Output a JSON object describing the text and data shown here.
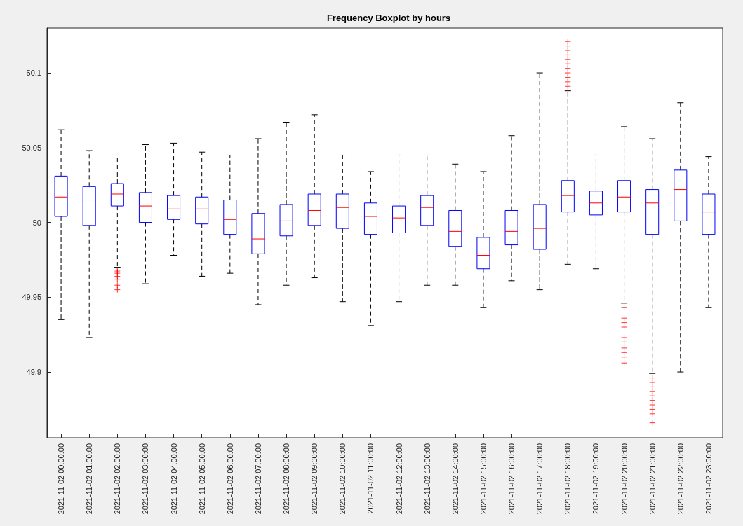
{
  "chart_data": {
    "type": "box",
    "title": "Frequency Boxplot by hours",
    "color": "#0000ff",
    "marker": "cross",
    "line_style": "dashed",
    "categories": [
      "2021-11-02 00:00:00",
      "2021-11-02 01:00:00",
      "2021-11-02 02:00:00",
      "2021-11-02 03:00:00",
      "2021-11-02 04:00:00",
      "2021-11-02 05:00:00",
      "2021-11-02 06:00:00",
      "2021-11-02 07:00:00",
      "2021-11-02 08:00:00",
      "2021-11-02 09:00:00",
      "2021-11-02 10:00:00",
      "2021-11-02 11:00:00",
      "2021-11-02 12:00:00",
      "2021-11-02 13:00:00",
      "2021-11-02 14:00:00",
      "2021-11-02 15:00:00",
      "2021-11-02 16:00:00",
      "2021-11-02 17:00:00",
      "2021-11-02 18:00:00",
      "2021-11-02 19:00:00",
      "2021-11-02 20:00:00",
      "2021-11-02 21:00:00",
      "2021-11-02 22:00:00",
      "2021-11-02 23:00:00"
    ],
    "ylim": [
      49.856,
      50.13
    ],
    "yticks": [
      49.9,
      49.95,
      50,
      50.05,
      50.1
    ],
    "boxes": [
      {
        "low": 49.935,
        "q1": 50.004,
        "median": 50.017,
        "q3": 50.031,
        "high": 50.062
      },
      {
        "low": 49.923,
        "q1": 49.998,
        "median": 50.015,
        "q3": 50.024,
        "high": 50.048
      },
      {
        "low": 49.97,
        "q1": 50.011,
        "median": 50.019,
        "q3": 50.026,
        "high": 50.045,
        "outliers": [
          49.968,
          49.967,
          49.966,
          49.964,
          49.962,
          49.958,
          49.955
        ]
      },
      {
        "low": 49.959,
        "q1": 50.0,
        "median": 50.011,
        "q3": 50.02,
        "high": 50.052
      },
      {
        "low": 49.978,
        "q1": 50.002,
        "median": 50.009,
        "q3": 50.018,
        "high": 50.053
      },
      {
        "low": 49.964,
        "q1": 49.999,
        "median": 50.009,
        "q3": 50.017,
        "high": 50.047
      },
      {
        "low": 49.966,
        "q1": 49.992,
        "median": 50.002,
        "q3": 50.015,
        "high": 50.045
      },
      {
        "low": 49.945,
        "q1": 49.979,
        "median": 49.989,
        "q3": 50.006,
        "high": 50.056
      },
      {
        "low": 49.958,
        "q1": 49.991,
        "median": 50.001,
        "q3": 50.012,
        "high": 50.067
      },
      {
        "low": 49.963,
        "q1": 49.998,
        "median": 50.008,
        "q3": 50.019,
        "high": 50.072
      },
      {
        "low": 49.947,
        "q1": 49.996,
        "median": 50.01,
        "q3": 50.019,
        "high": 50.045
      },
      {
        "low": 49.931,
        "q1": 49.992,
        "median": 50.004,
        "q3": 50.013,
        "high": 50.034
      },
      {
        "low": 49.947,
        "q1": 49.993,
        "median": 50.003,
        "q3": 50.011,
        "high": 50.045
      },
      {
        "low": 49.958,
        "q1": 49.998,
        "median": 50.01,
        "q3": 50.018,
        "high": 50.045
      },
      {
        "low": 49.958,
        "q1": 49.984,
        "median": 49.994,
        "q3": 50.008,
        "high": 50.039
      },
      {
        "low": 49.943,
        "q1": 49.969,
        "median": 49.978,
        "q3": 49.99,
        "high": 50.034
      },
      {
        "low": 49.961,
        "q1": 49.985,
        "median": 49.994,
        "q3": 50.008,
        "high": 50.058
      },
      {
        "low": 49.955,
        "q1": 49.982,
        "median": 49.996,
        "q3": 50.012,
        "high": 50.1
      },
      {
        "low": 49.972,
        "q1": 50.007,
        "median": 50.018,
        "q3": 50.028,
        "high": 50.088,
        "outliers": [
          50.091,
          50.094,
          50.097,
          50.1,
          50.103,
          50.106,
          50.109,
          50.112,
          50.115,
          50.118,
          50.121
        ]
      },
      {
        "low": 49.969,
        "q1": 50.005,
        "median": 50.013,
        "q3": 50.021,
        "high": 50.045
      },
      {
        "low": 49.946,
        "q1": 50.007,
        "median": 50.017,
        "q3": 50.028,
        "high": 50.064,
        "outliers": [
          49.943,
          49.936,
          49.933,
          49.93,
          49.923,
          49.92,
          49.916,
          49.913,
          49.91,
          49.906
        ]
      },
      {
        "low": 49.899,
        "q1": 49.992,
        "median": 50.013,
        "q3": 50.022,
        "high": 50.056,
        "outliers": [
          49.896,
          49.893,
          49.89,
          49.887,
          49.884,
          49.881,
          49.878,
          49.875,
          49.872,
          49.866
        ]
      },
      {
        "low": 49.9,
        "q1": 50.001,
        "median": 50.022,
        "q3": 50.035,
        "high": 50.08
      },
      {
        "low": 49.943,
        "q1": 49.992,
        "median": 50.007,
        "q3": 50.019,
        "high": 50.044
      }
    ]
  }
}
